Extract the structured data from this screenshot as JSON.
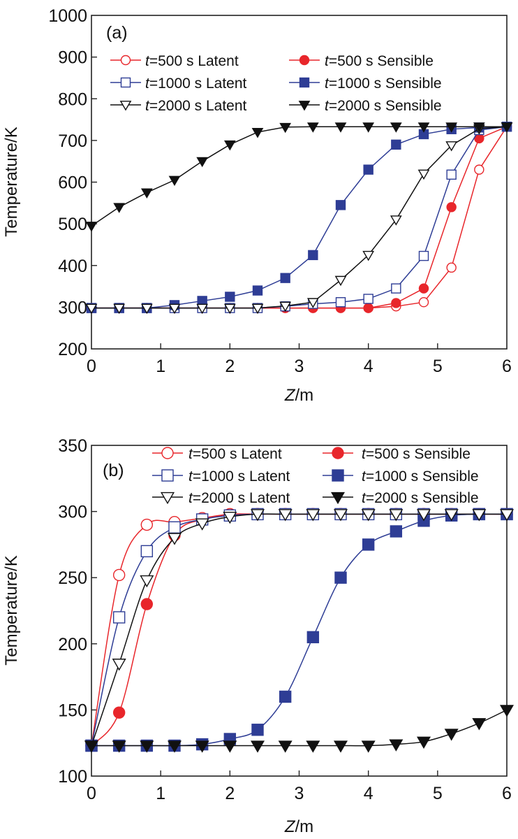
{
  "chart_data": [
    {
      "type": "line",
      "panel_label": "(a)",
      "xlabel_italic": "Z",
      "xlabel_rest": "/m",
      "ylabel": "Temperature/K",
      "xlim": [
        0,
        6
      ],
      "ylim": [
        200,
        1000
      ],
      "xticks": [
        0,
        1,
        2,
        3,
        4,
        5,
        6
      ],
      "yticks": [
        200,
        300,
        400,
        500,
        600,
        700,
        800,
        900,
        1000
      ],
      "grid": false,
      "legend_placement": "top",
      "x": [
        0,
        0.4,
        0.8,
        1.2,
        1.6,
        2.0,
        2.4,
        2.8,
        3.2,
        3.6,
        4.0,
        4.4,
        4.8,
        5.2,
        5.6,
        6.0
      ],
      "series": [
        {
          "name_italic": "t",
          "name_rest": "=500 s Latent",
          "color": "#e8262b",
          "marker": "circle",
          "filled": false,
          "values": [
            298,
            298,
            298,
            298,
            298,
            298,
            298,
            298,
            298,
            298,
            298,
            302,
            312,
            395,
            630,
            733
          ]
        },
        {
          "name_italic": "t",
          "name_rest": "=500 s Sensible",
          "color": "#e8262b",
          "marker": "circle",
          "filled": true,
          "values": [
            298,
            298,
            298,
            298,
            298,
            298,
            298,
            298,
            298,
            298,
            298,
            310,
            345,
            540,
            705,
            733
          ]
        },
        {
          "name_italic": "t",
          "name_rest": "=1000 s Latent",
          "color": "#2e3d95",
          "marker": "square",
          "filled": false,
          "values": [
            298,
            298,
            298,
            298,
            298,
            298,
            298,
            302,
            308,
            312,
            320,
            345,
            423,
            618,
            725,
            733
          ]
        },
        {
          "name_italic": "t",
          "name_rest": "=1000 s Sensible",
          "color": "#2e3d95",
          "marker": "square",
          "filled": true,
          "values": [
            298,
            298,
            298,
            305,
            315,
            325,
            340,
            370,
            425,
            545,
            630,
            690,
            715,
            727,
            731,
            733
          ]
        },
        {
          "name_italic": "t",
          "name_rest": "=2000 s Latent",
          "color": "#111111",
          "marker": "triangle-down",
          "filled": false,
          "values": [
            298,
            298,
            298,
            298,
            298,
            298,
            298,
            303,
            312,
            365,
            425,
            510,
            620,
            688,
            728,
            733
          ]
        },
        {
          "name_italic": "t",
          "name_rest": "=2000 s Sensible",
          "color": "#111111",
          "marker": "triangle-down",
          "filled": true,
          "values": [
            495,
            540,
            575,
            605,
            650,
            690,
            720,
            732,
            733,
            733,
            733,
            733,
            733,
            733,
            733,
            733
          ]
        }
      ]
    },
    {
      "type": "line",
      "panel_label": "(b)",
      "xlabel_italic": "Z",
      "xlabel_rest": "/m",
      "ylabel": "Temperature/K",
      "xlim": [
        0,
        6
      ],
      "ylim": [
        100,
        350
      ],
      "xticks": [
        0,
        1,
        2,
        3,
        4,
        5,
        6
      ],
      "yticks": [
        100,
        150,
        200,
        250,
        300,
        350
      ],
      "grid": false,
      "legend_placement": "top",
      "x": [
        0,
        0.4,
        0.8,
        1.2,
        1.6,
        2.0,
        2.4,
        2.8,
        3.2,
        3.6,
        4.0,
        4.4,
        4.8,
        5.2,
        5.6,
        6.0
      ],
      "series": [
        {
          "name_italic": "t",
          "name_rest": "=500 s Latent",
          "color": "#e8262b",
          "marker": "circle",
          "filled": false,
          "values": [
            123,
            252,
            290,
            292,
            295,
            298,
            298,
            298,
            298,
            298,
            298,
            298,
            298,
            298,
            298,
            298
          ]
        },
        {
          "name_italic": "t",
          "name_rest": "=500 s Sensible",
          "color": "#e8262b",
          "marker": "circle",
          "filled": true,
          "values": [
            123,
            148,
            230,
            282,
            294,
            297,
            298,
            298,
            298,
            298,
            298,
            298,
            298,
            298,
            298,
            298
          ]
        },
        {
          "name_italic": "t",
          "name_rest": "=1000 s Latent",
          "color": "#2e3d95",
          "marker": "square",
          "filled": false,
          "values": [
            123,
            220,
            270,
            288,
            294,
            297,
            298,
            298,
            298,
            298,
            298,
            298,
            298,
            298,
            298,
            298
          ]
        },
        {
          "name_italic": "t",
          "name_rest": "=1000 s Sensible",
          "color": "#2e3d95",
          "marker": "square",
          "filled": true,
          "values": [
            123,
            123,
            123,
            123,
            124,
            128,
            135,
            160,
            205,
            250,
            275,
            285,
            293,
            297,
            298,
            298
          ]
        },
        {
          "name_italic": "t",
          "name_rest": "=2000 s Latent",
          "color": "#111111",
          "marker": "triangle-down",
          "filled": false,
          "values": [
            123,
            185,
            248,
            280,
            291,
            296,
            298,
            298,
            298,
            298,
            298,
            298,
            298,
            298,
            298,
            298
          ]
        },
        {
          "name_italic": "t",
          "name_rest": "=2000 s Sensible",
          "color": "#111111",
          "marker": "triangle-down",
          "filled": true,
          "values": [
            123,
            123,
            123,
            123,
            123,
            123,
            123,
            123,
            123,
            123,
            123,
            124,
            126,
            132,
            140,
            150
          ]
        }
      ]
    }
  ]
}
